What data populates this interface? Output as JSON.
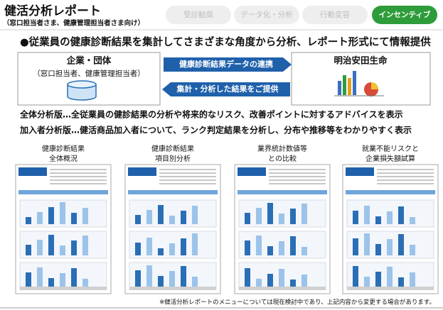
{
  "header": {
    "title": "健活分析レポート",
    "subtitle": "（窓口担当者さま、健康管理担当者さま向け）"
  },
  "tabs": {
    "items": [
      "受診勧奨",
      "データ化・分析",
      "行動変容",
      "インセンティブ"
    ],
    "active": 3
  },
  "headline": "●従業員の健康診断結果を集計してさまざまな角度から分析、レポート形式にて情報提供",
  "flow": {
    "left": {
      "title": "企業・団体",
      "subtitle": "（窓口担当者、健康管理担当者）"
    },
    "arrows": [
      "健康診断結果データの連携",
      "集計・分析した結果をご提供"
    ],
    "right": {
      "title": "明治安田生命"
    }
  },
  "descriptions": [
    "全体分析版…全従業員の健診結果の分析や将来的なリスク、改善ポイントに対するアドバイスを表示",
    "加入者分析版…健活商品加入者について、ランク判定結果を分析し、分布や推移等をわかりやすく表示"
  ],
  "reports": [
    {
      "caption": [
        "健康診断結果",
        "全体概況"
      ]
    },
    {
      "caption": [
        "健康診断結果",
        "項目別分析"
      ]
    },
    {
      "caption": [
        "業界統計数値等",
        "との比較"
      ]
    },
    {
      "caption": [
        "就業不能リスクと",
        "企業損失額試算"
      ]
    }
  ],
  "footnote": "※健活分析レポートのメニューについては現在検討中であり、上記内容から変更する場合があります。"
}
